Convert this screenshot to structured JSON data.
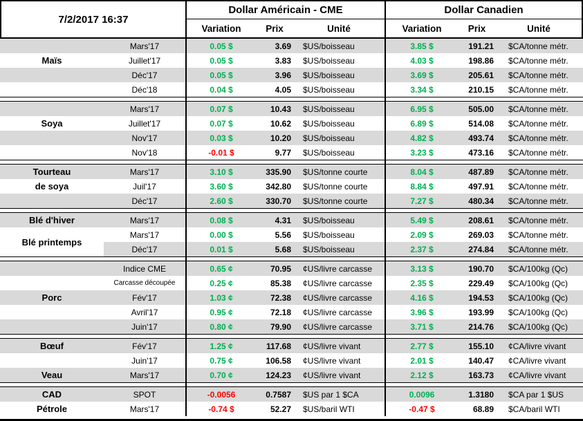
{
  "header": {
    "date": "7/2/2017 16:37",
    "blocks": [
      {
        "title": "Dollar Américain - CME",
        "columns": [
          "Variation",
          "Prix",
          "Unité"
        ]
      },
      {
        "title": "Dollar Canadien",
        "columns": [
          "Variation",
          "Prix",
          "Unité"
        ]
      }
    ]
  },
  "colors": {
    "positive_green": "#00B050",
    "negative_red": "#FF0000",
    "row_stripe_grey": "#D9D9D9",
    "border_black": "#000000"
  },
  "sections": [
    {
      "name": "mais",
      "rows": [
        {
          "commodity": "",
          "month": "Mars'17",
          "shaded": true,
          "us": {
            "variation": "0.05 $",
            "direction": "up",
            "price": "3.69",
            "unit": "$US/boisseau"
          },
          "ca": {
            "variation": "3.85 $",
            "direction": "up",
            "price": "191.21",
            "unit": "$CA/tonne métr."
          }
        },
        {
          "commodity": "Maïs",
          "month": "Juillet'17",
          "shaded": false,
          "us": {
            "variation": "0.05 $",
            "direction": "up",
            "price": "3.83",
            "unit": "$US/boisseau"
          },
          "ca": {
            "variation": "4.03 $",
            "direction": "up",
            "price": "198.86",
            "unit": "$CA/tonne métr."
          }
        },
        {
          "commodity": "",
          "month": "Déc'17",
          "shaded": true,
          "us": {
            "variation": "0.05 $",
            "direction": "up",
            "price": "3.96",
            "unit": "$US/boisseau"
          },
          "ca": {
            "variation": "3.69 $",
            "direction": "up",
            "price": "205.61",
            "unit": "$CA/tonne métr."
          }
        },
        {
          "commodity": "",
          "month": "Déc'18",
          "shaded": false,
          "us": {
            "variation": "0.04 $",
            "direction": "up",
            "price": "4.05",
            "unit": "$US/boisseau"
          },
          "ca": {
            "variation": "3.34 $",
            "direction": "up",
            "price": "210.15",
            "unit": "$CA/tonne métr."
          }
        }
      ]
    },
    {
      "name": "soya",
      "rows": [
        {
          "commodity": "",
          "month": "Mars'17",
          "shaded": true,
          "us": {
            "variation": "0.07 $",
            "direction": "up",
            "price": "10.43",
            "unit": "$US/boisseau"
          },
          "ca": {
            "variation": "6.95 $",
            "direction": "up",
            "price": "505.00",
            "unit": "$CA/tonne métr."
          }
        },
        {
          "commodity": "Soya",
          "month": "Juillet'17",
          "shaded": false,
          "us": {
            "variation": "0.07 $",
            "direction": "up",
            "price": "10.62",
            "unit": "$US/boisseau"
          },
          "ca": {
            "variation": "6.89 $",
            "direction": "up",
            "price": "514.08",
            "unit": "$CA/tonne métr."
          }
        },
        {
          "commodity": "",
          "month": "Nov'17",
          "shaded": true,
          "us": {
            "variation": "0.03 $",
            "direction": "up",
            "price": "10.20",
            "unit": "$US/boisseau"
          },
          "ca": {
            "variation": "4.82 $",
            "direction": "up",
            "price": "493.74",
            "unit": "$CA/tonne métr."
          }
        },
        {
          "commodity": "",
          "month": "Nov'18",
          "shaded": false,
          "us": {
            "variation": "-0.01 $",
            "direction": "down",
            "price": "9.77",
            "unit": "$US/boisseau"
          },
          "ca": {
            "variation": "3.23 $",
            "direction": "up",
            "price": "473.16",
            "unit": "$CA/tonne métr."
          }
        }
      ]
    },
    {
      "name": "tourteau-de-soya",
      "rows": [
        {
          "commodity": "Tourteau",
          "month": "Mars'17",
          "shaded": true,
          "us": {
            "variation": "3.10 $",
            "direction": "up",
            "price": "335.90",
            "unit": "$US/tonne courte"
          },
          "ca": {
            "variation": "8.04 $",
            "direction": "up",
            "price": "487.89",
            "unit": "$CA/tonne métr."
          }
        },
        {
          "commodity": "de soya",
          "month": "Juil'17",
          "shaded": false,
          "us": {
            "variation": "3.60 $",
            "direction": "up",
            "price": "342.80",
            "unit": "$US/tonne courte"
          },
          "ca": {
            "variation": "8.84 $",
            "direction": "up",
            "price": "497.91",
            "unit": "$CA/tonne métr."
          }
        },
        {
          "commodity": "",
          "month": "Déc'17",
          "shaded": true,
          "us": {
            "variation": "2.60 $",
            "direction": "up",
            "price": "330.70",
            "unit": "$US/tonne courte"
          },
          "ca": {
            "variation": "7.27 $",
            "direction": "up",
            "price": "480.34",
            "unit": "$CA/tonne métr."
          }
        }
      ]
    },
    {
      "name": "ble",
      "merged_commodity": {
        "label": "Blé printemps",
        "start_row": 1,
        "span": 2
      },
      "rows": [
        {
          "commodity": "Blé d'hiver",
          "month": "Mars'17",
          "shaded": true,
          "us": {
            "variation": "0.08 $",
            "direction": "up",
            "price": "4.31",
            "unit": "$US/boisseau"
          },
          "ca": {
            "variation": "5.49 $",
            "direction": "up",
            "price": "208.61",
            "unit": "$CA/tonne métr."
          }
        },
        {
          "commodity": "",
          "month": "Mars'17",
          "shaded": false,
          "us": {
            "variation": "0.00 $",
            "direction": "up",
            "price": "5.56",
            "unit": "$US/boisseau"
          },
          "ca": {
            "variation": "2.09 $",
            "direction": "up",
            "price": "269.03",
            "unit": "$CA/tonne métr."
          }
        },
        {
          "commodity": "",
          "month": "Déc'17",
          "shaded": true,
          "commodity_bg": "white",
          "us": {
            "variation": "0.01 $",
            "direction": "up",
            "price": "5.68",
            "unit": "$US/boisseau"
          },
          "ca": {
            "variation": "2.37 $",
            "direction": "up",
            "price": "274.84",
            "unit": "$CA/tonne métr."
          }
        }
      ]
    },
    {
      "name": "porc",
      "rows": [
        {
          "commodity": "",
          "month": "Indice CME",
          "shaded": true,
          "us": {
            "variation": "0.65 ¢",
            "direction": "up",
            "price": "70.95",
            "unit": "¢US/livre carcasse"
          },
          "ca": {
            "variation": "3.13 $",
            "direction": "up",
            "price": "190.70",
            "unit": "$CA/100kg (Qc)"
          }
        },
        {
          "commodity": "",
          "month": "Carcasse découpée",
          "shaded": false,
          "small_month": true,
          "us": {
            "variation": "0.25 ¢",
            "direction": "up",
            "price": "85.38",
            "unit": "¢US/livre carcasse"
          },
          "ca": {
            "variation": "2.35 $",
            "direction": "up",
            "price": "229.49",
            "unit": "$CA/100kg (Qc)"
          }
        },
        {
          "commodity": "Porc",
          "month": "Fév'17",
          "shaded": true,
          "us": {
            "variation": "1.03 ¢",
            "direction": "up",
            "price": "72.38",
            "unit": "¢US/livre carcasse"
          },
          "ca": {
            "variation": "4.16 $",
            "direction": "up",
            "price": "194.53",
            "unit": "$CA/100kg (Qc)"
          }
        },
        {
          "commodity": "",
          "month": "Avril'17",
          "shaded": false,
          "us": {
            "variation": "0.95 ¢",
            "direction": "up",
            "price": "72.18",
            "unit": "¢US/livre carcasse"
          },
          "ca": {
            "variation": "3.96 $",
            "direction": "up",
            "price": "193.99",
            "unit": "$CA/100kg (Qc)"
          }
        },
        {
          "commodity": "",
          "month": "Juin'17",
          "shaded": true,
          "us": {
            "variation": "0.80 ¢",
            "direction": "up",
            "price": "79.90",
            "unit": "¢US/livre carcasse"
          },
          "ca": {
            "variation": "3.71 $",
            "direction": "up",
            "price": "214.76",
            "unit": "$CA/100kg (Qc)"
          }
        }
      ]
    },
    {
      "name": "boeuf-veau",
      "rows": [
        {
          "commodity": "Bœuf",
          "month": "Fév'17",
          "shaded": true,
          "us": {
            "variation": "1.25 ¢",
            "direction": "up",
            "price": "117.68",
            "unit": "¢US/livre vivant"
          },
          "ca": {
            "variation": "2.77 $",
            "direction": "up",
            "price": "155.10",
            "unit": "¢CA/livre vivant"
          }
        },
        {
          "commodity": "",
          "month": "Juin'17",
          "shaded": false,
          "us": {
            "variation": "0.75 ¢",
            "direction": "up",
            "price": "106.58",
            "unit": "¢US/livre vivant"
          },
          "ca": {
            "variation": "2.01 $",
            "direction": "up",
            "price": "140.47",
            "unit": "¢CA/livre vivant"
          }
        },
        {
          "commodity": "Veau",
          "month": "Mars'17",
          "shaded": true,
          "us": {
            "variation": "0.70 ¢",
            "direction": "up",
            "price": "124.23",
            "unit": "¢US/livre vivant"
          },
          "ca": {
            "variation": "2.12 $",
            "direction": "up",
            "price": "163.73",
            "unit": "¢CA/livre vivant"
          }
        }
      ]
    },
    {
      "name": "cad-petrole",
      "rows": [
        {
          "commodity": "CAD",
          "month": "SPOT",
          "shaded": true,
          "us": {
            "variation": "-0.0056",
            "direction": "down",
            "price": "0.7587",
            "unit": "$US par 1 $CA"
          },
          "ca": {
            "variation": "0.0096",
            "direction": "up",
            "price": "1.3180",
            "unit": "$CA par 1 $US"
          }
        },
        {
          "commodity": "Pétrole",
          "month": "Mars'17",
          "shaded": false,
          "us": {
            "variation": "-0.74 $",
            "direction": "down",
            "price": "52.27",
            "unit": "$US/baril WTI"
          },
          "ca": {
            "variation": "-0.47 $",
            "direction": "down",
            "price": "68.89",
            "unit": "$CA/baril WTI"
          }
        }
      ]
    }
  ]
}
